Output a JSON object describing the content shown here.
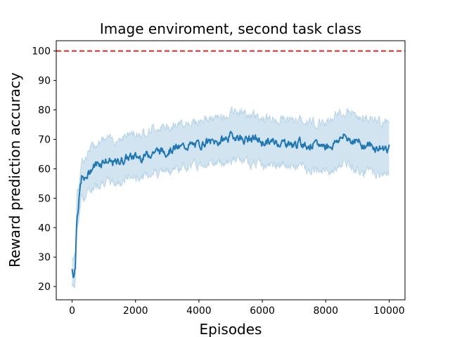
{
  "chart_data": {
    "type": "line",
    "title": "Image enviroment, second task class",
    "xlabel": "Episodes",
    "ylabel": "Reward prediction accuracy",
    "xlim": [
      -500,
      10500
    ],
    "ylim": [
      15.5,
      103.5
    ],
    "xticks": [
      0,
      2000,
      4000,
      6000,
      8000,
      10000
    ],
    "xtick_labels": [
      "0",
      "2000",
      "4000",
      "6000",
      "8000",
      "10000"
    ],
    "yticks": [
      20,
      30,
      40,
      50,
      60,
      70,
      80,
      90,
      100
    ],
    "ytick_labels": [
      "20",
      "30",
      "40",
      "50",
      "60",
      "70",
      "80",
      "90",
      "100"
    ],
    "grid": false,
    "reference_line": {
      "y": 100,
      "style": "dashed",
      "color": "#d62728"
    },
    "series": [
      {
        "color": "#1f77b4",
        "band_color": "#1f77b4",
        "x": [
          0,
          50,
          100,
          150,
          200,
          250,
          300,
          400,
          500,
          600,
          700,
          800,
          900,
          1000,
          1200,
          1400,
          1600,
          1800,
          2000,
          2200,
          2400,
          2600,
          2800,
          3000,
          3200,
          3400,
          3600,
          3800,
          4000,
          4200,
          4400,
          4600,
          4800,
          5000,
          5200,
          5400,
          5600,
          5800,
          6000,
          6200,
          6400,
          6600,
          6800,
          7000,
          7200,
          7400,
          7600,
          7800,
          8000,
          8200,
          8400,
          8600,
          8800,
          9000,
          9200,
          9400,
          9600,
          9800,
          10000
        ],
        "mean": [
          26,
          24,
          27,
          45,
          47,
          53,
          57,
          56,
          58,
          60,
          61,
          62,
          62,
          63,
          62,
          62,
          63,
          64,
          64,
          64,
          65,
          66,
          66,
          66,
          67,
          67,
          68,
          68,
          68,
          69,
          69,
          69,
          70,
          71,
          71,
          70,
          70,
          70,
          69,
          69,
          69,
          69,
          69,
          68,
          69,
          68,
          68,
          68,
          68,
          68,
          70,
          71,
          70,
          69,
          68,
          68,
          67,
          67,
          67
        ],
        "lower": [
          21,
          19,
          22,
          39,
          42,
          47,
          51,
          50,
          52,
          53,
          54,
          55,
          55,
          56,
          55,
          55,
          56,
          57,
          57,
          57,
          58,
          59,
          59,
          59,
          60,
          60,
          61,
          61,
          61,
          62,
          62,
          62,
          62,
          63,
          63,
          62,
          62,
          62,
          61,
          61,
          61,
          61,
          61,
          60,
          61,
          60,
          60,
          60,
          59,
          59,
          61,
          62,
          61,
          60,
          59,
          59,
          58,
          58,
          59
        ],
        "upper": [
          31,
          29,
          32,
          51,
          53,
          59,
          64,
          63,
          65,
          67,
          68,
          69,
          70,
          70,
          70,
          70,
          71,
          72,
          72,
          72,
          73,
          74,
          74,
          74,
          75,
          75,
          76,
          76,
          76,
          77,
          77,
          77,
          78,
          79,
          80,
          79,
          78,
          78,
          77,
          77,
          77,
          77,
          77,
          76,
          77,
          76,
          76,
          76,
          76,
          77,
          79,
          79,
          79,
          78,
          77,
          77,
          76,
          76,
          76
        ]
      }
    ]
  }
}
